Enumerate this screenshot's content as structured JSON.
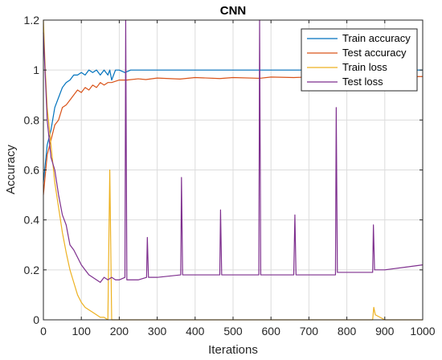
{
  "chart_data": {
    "type": "line",
    "title": "CNN",
    "xlabel": "Iterations",
    "ylabel": "Accuracy",
    "xlim": [
      0,
      1000
    ],
    "ylim": [
      0,
      1.2
    ],
    "xticks": [
      0,
      100,
      200,
      300,
      400,
      500,
      600,
      700,
      800,
      900,
      1000
    ],
    "yticks": [
      0,
      0.2,
      0.4,
      0.6,
      0.8,
      1,
      1.2
    ],
    "xtick_labels": [
      "0",
      "100",
      "200",
      "300",
      "400",
      "500",
      "600",
      "700",
      "800",
      "900",
      "1000"
    ],
    "ytick_labels": [
      "0",
      "0.2",
      "0.4",
      "0.6",
      "0.8",
      "1",
      "1.2"
    ],
    "grid": true,
    "legend_position": "top-right",
    "series": [
      {
        "name": "Train accuracy",
        "color": "#0072BD",
        "x": [
          0,
          10,
          20,
          30,
          40,
          50,
          60,
          70,
          80,
          90,
          100,
          110,
          120,
          130,
          140,
          150,
          160,
          170,
          175,
          180,
          190,
          200,
          215,
          230,
          270,
          300,
          360,
          400,
          465,
          500,
          570,
          600,
          660,
          700,
          770,
          800,
          870,
          900,
          1000
        ],
        "y": [
          0.55,
          0.7,
          0.76,
          0.85,
          0.89,
          0.93,
          0.95,
          0.96,
          0.98,
          0.98,
          0.99,
          0.98,
          1.0,
          0.99,
          1.0,
          0.98,
          1.0,
          0.98,
          1.0,
          0.96,
          1.0,
          1.0,
          0.99,
          1.0,
          1.0,
          1.0,
          1.0,
          1.0,
          1.0,
          1.0,
          1.0,
          1.0,
          1.0,
          1.0,
          1.0,
          1.0,
          1.0,
          1.0,
          1.0
        ]
      },
      {
        "name": "Test accuracy",
        "color": "#D95319",
        "x": [
          0,
          10,
          20,
          30,
          40,
          50,
          60,
          70,
          80,
          90,
          100,
          110,
          120,
          130,
          140,
          150,
          160,
          170,
          180,
          200,
          220,
          250,
          270,
          300,
          360,
          400,
          465,
          500,
          570,
          600,
          660,
          700,
          770,
          800,
          870,
          900,
          1000
        ],
        "y": [
          0.5,
          0.66,
          0.72,
          0.78,
          0.8,
          0.85,
          0.86,
          0.88,
          0.9,
          0.92,
          0.91,
          0.93,
          0.92,
          0.94,
          0.93,
          0.95,
          0.94,
          0.95,
          0.95,
          0.96,
          0.96,
          0.965,
          0.962,
          0.968,
          0.964,
          0.97,
          0.966,
          0.97,
          0.967,
          0.972,
          0.97,
          0.972,
          0.97,
          0.972,
          0.971,
          0.973,
          0.974
        ]
      },
      {
        "name": "Train loss",
        "color": "#EDB120",
        "x": [
          0,
          5,
          10,
          20,
          30,
          40,
          50,
          60,
          70,
          80,
          90,
          100,
          110,
          120,
          130,
          140,
          150,
          160,
          170,
          175,
          180,
          190,
          200,
          215,
          220,
          230,
          250,
          270,
          275,
          300,
          360,
          365,
          400,
          465,
          470,
          500,
          570,
          575,
          600,
          660,
          665,
          700,
          770,
          775,
          800,
          868,
          871,
          875,
          900,
          1000
        ],
        "y": [
          1.2,
          1.0,
          0.85,
          0.7,
          0.55,
          0.45,
          0.35,
          0.27,
          0.2,
          0.15,
          0.1,
          0.07,
          0.05,
          0.04,
          0.03,
          0.02,
          0.01,
          0.01,
          0.0,
          0.6,
          0.0,
          0.0,
          0.0,
          0.0,
          0.0,
          0.0,
          0.0,
          0.0,
          0.0,
          0.0,
          0.0,
          0.0,
          0.0,
          0.0,
          0.0,
          0.0,
          0.0,
          0.0,
          0.0,
          0.0,
          0.0,
          0.0,
          0.0,
          0.0,
          0.0,
          0.0,
          0.05,
          0.02,
          0.0,
          0.0
        ]
      },
      {
        "name": "Test loss",
        "color": "#7E2F8E",
        "x": [
          0,
          10,
          20,
          30,
          40,
          50,
          60,
          70,
          80,
          90,
          100,
          110,
          120,
          130,
          140,
          150,
          160,
          170,
          180,
          190,
          200,
          215,
          217,
          220,
          250,
          272,
          274,
          277,
          300,
          362,
          364,
          367,
          400,
          465,
          467,
          470,
          500,
          568,
          570,
          573,
          600,
          660,
          663,
          666,
          700,
          770,
          772,
          775,
          800,
          868,
          870,
          873,
          900,
          1000
        ],
        "y": [
          1.15,
          0.8,
          0.65,
          0.6,
          0.5,
          0.42,
          0.38,
          0.3,
          0.28,
          0.25,
          0.22,
          0.2,
          0.18,
          0.17,
          0.16,
          0.15,
          0.17,
          0.16,
          0.17,
          0.16,
          0.16,
          0.17,
          1.2,
          0.16,
          0.16,
          0.17,
          0.33,
          0.17,
          0.17,
          0.18,
          0.57,
          0.18,
          0.18,
          0.18,
          0.44,
          0.18,
          0.18,
          0.18,
          1.2,
          0.18,
          0.18,
          0.18,
          0.42,
          0.18,
          0.18,
          0.18,
          0.85,
          0.19,
          0.19,
          0.19,
          0.38,
          0.2,
          0.2,
          0.22
        ]
      }
    ]
  }
}
